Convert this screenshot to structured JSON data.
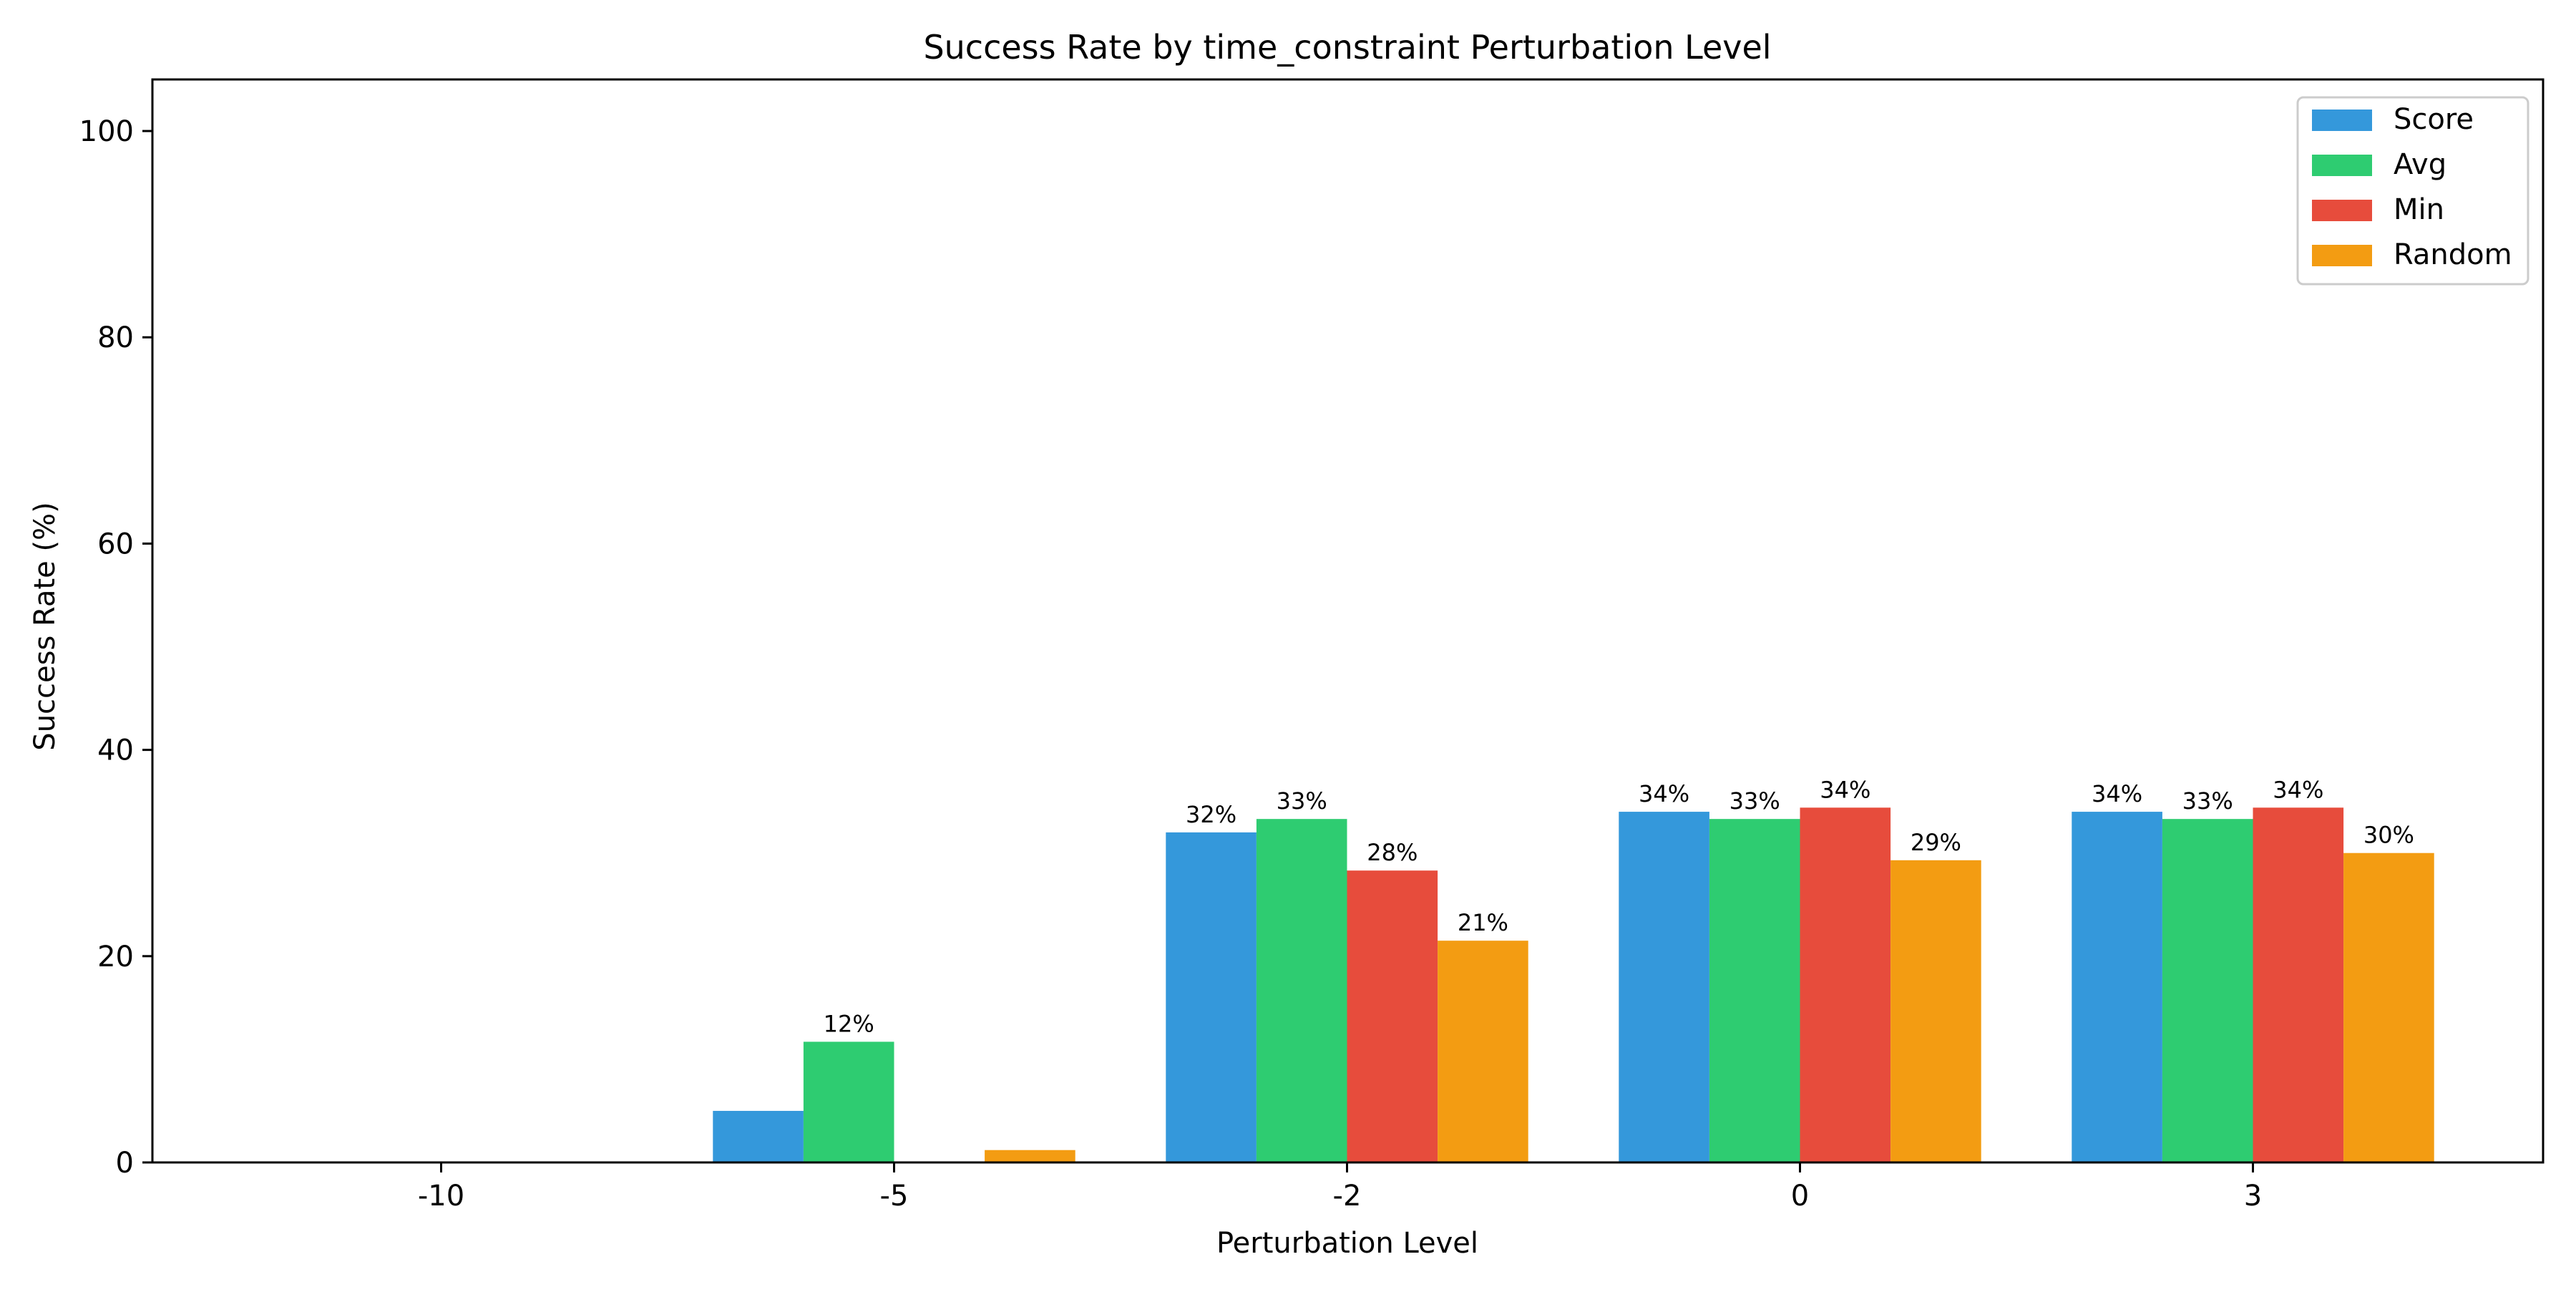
{
  "chart_data": {
    "type": "bar",
    "title": "Success Rate by time_constraint Perturbation Level",
    "xlabel": "Perturbation Level",
    "ylabel": "Success Rate (%)",
    "ylim": [
      0,
      105
    ],
    "yticks": [
      0,
      20,
      40,
      60,
      80,
      100
    ],
    "categories": [
      "-10",
      "-5",
      "-2",
      "0",
      "3"
    ],
    "series": [
      {
        "name": "Score",
        "color": "#3498db",
        "values": [
          0,
          5.0,
          32.0,
          34.0,
          34.0
        ]
      },
      {
        "name": "Avg",
        "color": "#2ecc71",
        "values": [
          0,
          11.7,
          33.3,
          33.3,
          33.3
        ]
      },
      {
        "name": "Min",
        "color": "#e74c3c",
        "values": [
          0,
          0,
          28.3,
          34.4,
          34.4
        ]
      },
      {
        "name": "Random",
        "color": "#f39c12",
        "values": [
          0,
          1.2,
          21.5,
          29.3,
          30.0
        ]
      }
    ],
    "data_labels": [
      [
        "",
        "",
        "",
        ""
      ],
      [
        "",
        "12%",
        "",
        ""
      ],
      [
        "32%",
        "33%",
        "28%",
        "21%"
      ],
      [
        "34%",
        "33%",
        "34%",
        "29%"
      ],
      [
        "34%",
        "33%",
        "34%",
        "30%"
      ]
    ],
    "grid": false,
    "legend_position": "top-right"
  }
}
